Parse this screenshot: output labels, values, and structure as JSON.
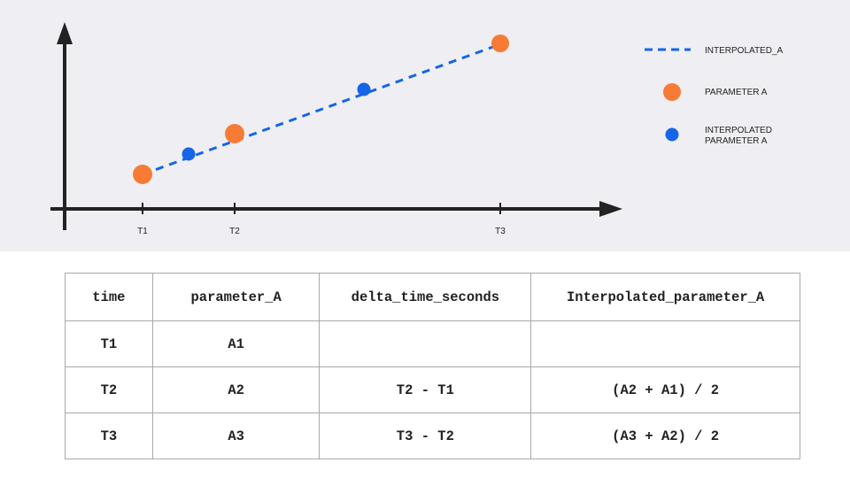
{
  "diagram": {
    "tick_labels": [
      "T1",
      "T2",
      "T3"
    ],
    "legend": [
      {
        "label_lines": [
          "INTERPOLATED_A"
        ],
        "kind": "dashed-line",
        "color": "#1565e8"
      },
      {
        "label_lines": [
          "PARAMETER A"
        ],
        "kind": "large-dot",
        "color": "#f77b35"
      },
      {
        "label_lines": [
          "INTERPOLATED",
          "PARAMETER A"
        ],
        "kind": "small-dot",
        "color": "#1565e8"
      }
    ],
    "colors": {
      "axis": "#222222",
      "parameter": "#f77b35",
      "interpolated": "#1565e8"
    }
  },
  "table": {
    "headers": [
      "time",
      "parameter_A",
      "delta_time_seconds",
      "Interpolated_parameter_A"
    ],
    "rows": [
      [
        "T1",
        "A1",
        "",
        ""
      ],
      [
        "T2",
        "A2",
        "T2 - T1",
        "(A2 + A1) / 2"
      ],
      [
        "T3",
        "A3",
        "T3 - T2",
        "(A3 + A2) / 2"
      ]
    ]
  }
}
